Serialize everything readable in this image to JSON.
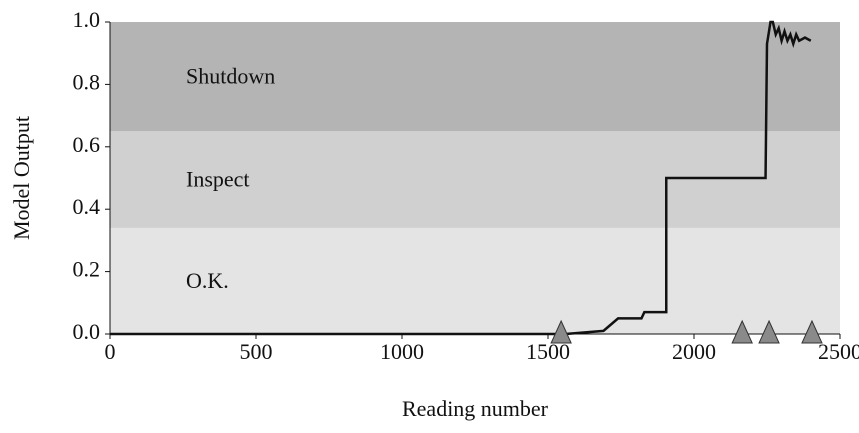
{
  "chart_data": {
    "type": "line",
    "xlabel": "Reading number",
    "ylabel": "Model Output",
    "xlim": [
      0,
      2500
    ],
    "ylim": [
      0,
      1
    ],
    "xticks": [
      0,
      500,
      1000,
      1500,
      2000,
      2500
    ],
    "yticks": [
      {
        "value": 0,
        "label": "0.0"
      },
      {
        "value": 0.2,
        "label": "0.2"
      },
      {
        "value": 0.4,
        "label": "0.4"
      },
      {
        "value": 0.6,
        "label": "0.6"
      },
      {
        "value": 0.8,
        "label": "0.8"
      },
      {
        "value": 1,
        "label": "1.0"
      }
    ],
    "bands": [
      {
        "label": "O.K.",
        "range": [
          0,
          0.34
        ],
        "color": "#e4e4e4"
      },
      {
        "label": "Inspect",
        "range": [
          0.34,
          0.65
        ],
        "color": "#d0d0d0"
      },
      {
        "label": "Shutdown",
        "range": [
          0.65,
          1
        ],
        "color": "#b4b4b4"
      }
    ],
    "series": [
      {
        "color": "#111111",
        "x": [
          0,
          1560,
          1690,
          1740,
          1820,
          1830,
          1905,
          1905,
          2245,
          2250,
          2262,
          2270,
          2280,
          2290,
          2300,
          2310,
          2320,
          2330,
          2340,
          2350,
          2360,
          2380,
          2400
        ],
        "values": [
          0,
          0,
          0.01,
          0.05,
          0.05,
          0.07,
          0.07,
          0.5,
          0.5,
          0.93,
          1.0,
          1.0,
          0.96,
          0.98,
          0.94,
          0.97,
          0.94,
          0.96,
          0.93,
          0.96,
          0.94,
          0.95,
          0.94
        ]
      }
    ],
    "markers": {
      "color": "#8a8a8a",
      "x": [
        1545,
        2165,
        2257,
        2404
      ],
      "values": [
        0,
        0,
        0,
        0
      ]
    }
  }
}
